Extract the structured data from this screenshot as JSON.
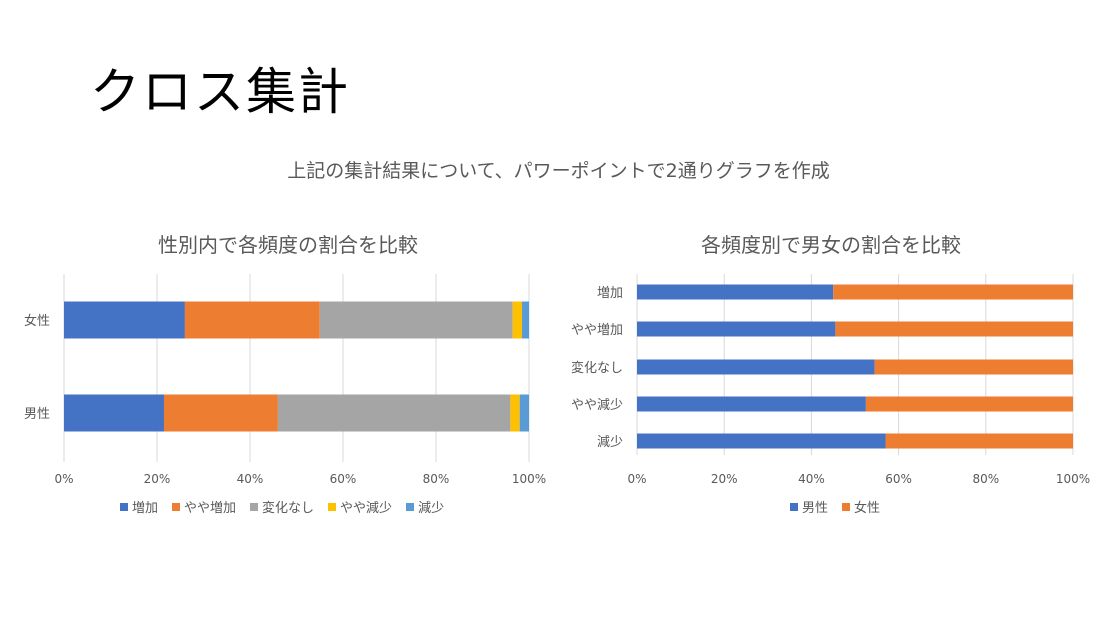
{
  "slide": {
    "title": "クロス集計",
    "subtitle": "上記の集計結果について、パワーポイントで2通りグラフを作成"
  },
  "chart_data": [
    {
      "type": "bar",
      "orientation": "horizontal",
      "stacked": "percent",
      "title": "性別内で各頻度の割合を比較",
      "categories": [
        "女性",
        "男性"
      ],
      "series": [
        {
          "name": "増加",
          "color": "#4472C4",
          "values": [
            26,
            21.5
          ]
        },
        {
          "name": "やや増加",
          "color": "#ED7D31",
          "values": [
            29,
            24.5
          ]
        },
        {
          "name": "変化なし",
          "color": "#A5A5A5",
          "values": [
            41.5,
            50
          ]
        },
        {
          "name": "やや減少",
          "color": "#FFC000",
          "values": [
            2,
            2
          ]
        },
        {
          "name": "減少",
          "color": "#5B9BD5",
          "values": [
            1.5,
            2
          ]
        }
      ],
      "xlim": [
        0,
        100
      ],
      "xticks": [
        "0%",
        "20%",
        "40%",
        "60%",
        "80%",
        "100%"
      ],
      "grid": true,
      "legend": "bottom"
    },
    {
      "type": "bar",
      "orientation": "horizontal",
      "stacked": "percent",
      "title": "各頻度別で男女の割合を比較",
      "categories": [
        "増加",
        "やや増加",
        "変化なし",
        "やや減少",
        "減少"
      ],
      "series": [
        {
          "name": "男性",
          "color": "#4472C4",
          "values": [
            45,
            45.5,
            54.5,
            52.5,
            57
          ]
        },
        {
          "name": "女性",
          "color": "#ED7D31",
          "values": [
            55,
            54.5,
            45.5,
            47.5,
            43
          ]
        }
      ],
      "xlim": [
        0,
        100
      ],
      "xticks": [
        "0%",
        "20%",
        "40%",
        "60%",
        "80%",
        "100%"
      ],
      "grid": true,
      "legend": "bottom"
    }
  ]
}
